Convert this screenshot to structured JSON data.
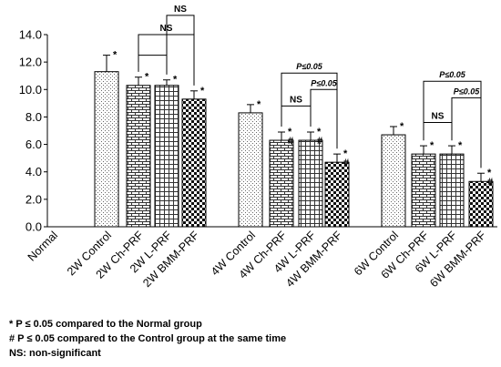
{
  "chart_data": {
    "type": "bar",
    "ylim": [
      0,
      14
    ],
    "yticks": [
      "0.0",
      "2.0",
      "4.0",
      "6.0",
      "8.0",
      "10.0",
      "12.0",
      "14.0"
    ],
    "grid": false,
    "categories": [
      "Normal",
      "2W Control",
      "2W Ch-PRF",
      "2W L-PRF",
      "2W BMM-PRF",
      "4W Control",
      "4W Ch-PRF",
      "4W L-PRF",
      "4W BMM-PRF",
      "6W Control",
      "6W Ch-PRF",
      "6W L-PRF",
      "6W BMM-PRF"
    ],
    "values": [
      0,
      11.3,
      10.3,
      10.3,
      9.3,
      8.3,
      6.3,
      6.3,
      4.7,
      6.7,
      5.3,
      5.3,
      3.3
    ],
    "errors": [
      0,
      1.2,
      0.6,
      0.4,
      0.6,
      0.6,
      0.6,
      0.6,
      0.6,
      0.6,
      0.6,
      0.6,
      0.6
    ],
    "patterns": [
      "none",
      "dots",
      "bricks",
      "grid",
      "checker",
      "dots",
      "bricks",
      "grid",
      "checker",
      "dots",
      "bricks",
      "grid",
      "checker"
    ],
    "bar_marks": [
      "",
      "*",
      "*",
      "*",
      "*",
      "*",
      "*\n#",
      "*\n#",
      "*\n#",
      "*",
      "*",
      "*",
      "*\n#"
    ],
    "comparisons": [
      {
        "from": 2,
        "to": 3,
        "label": "",
        "level": 12.5
      },
      {
        "from": 2,
        "to": 4,
        "label": "NS",
        "level": 14.0
      },
      {
        "from": 3,
        "to": 4,
        "label": "NS",
        "level": 15.4
      },
      {
        "from": 6,
        "to": 7,
        "label": "NS",
        "level": 8.8
      },
      {
        "from": 6,
        "to": 8,
        "label": "P≤0.05",
        "level": 11.2
      },
      {
        "from": 7,
        "to": 8,
        "label": "P≤0.05",
        "level": 10.0
      },
      {
        "from": 10,
        "to": 11,
        "label": "NS",
        "level": 7.6
      },
      {
        "from": 10,
        "to": 12,
        "label": "P≤0.05",
        "level": 10.6
      },
      {
        "from": 11,
        "to": 12,
        "label": "P≤0.05",
        "level": 9.4
      }
    ]
  },
  "footnotes": {
    "line1": "* P ≤ 0.05 compared to the Normal group",
    "line2": "# P ≤ 0.05 compared to the Control group at the same time",
    "line3": "NS: non-significant"
  }
}
